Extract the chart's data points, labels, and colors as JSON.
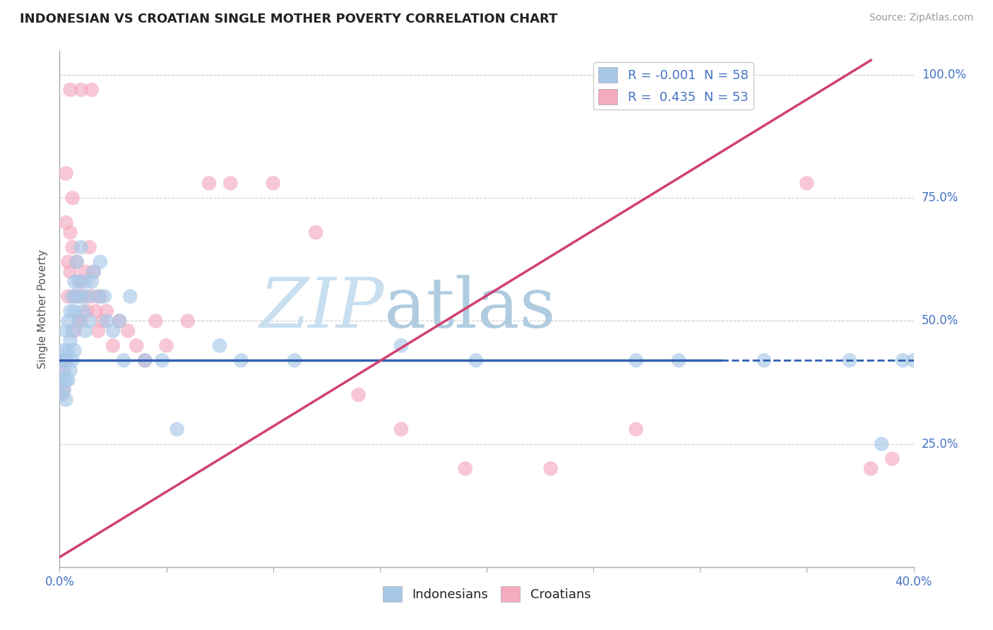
{
  "title": "INDONESIAN VS CROATIAN SINGLE MOTHER POVERTY CORRELATION CHART",
  "source": "Source: ZipAtlas.com",
  "ylabel": "Single Mother Poverty",
  "y_ticks": [
    0.0,
    0.25,
    0.5,
    0.75,
    1.0
  ],
  "y_tick_labels": [
    "",
    "25.0%",
    "50.0%",
    "75.0%",
    "100.0%"
  ],
  "xlim": [
    0.0,
    0.4
  ],
  "ylim": [
    0.0,
    1.05
  ],
  "legend_r_blue": "-0.001",
  "legend_n_blue": "58",
  "legend_r_pink": "0.435",
  "legend_n_pink": "53",
  "blue_color": "#a8c8e8",
  "pink_color": "#f4aabf",
  "blue_line_color": "#3060b0",
  "pink_line_color": "#d04070",
  "watermark_zip": "ZIP",
  "watermark_atlas": "atlas",
  "watermark_color_zip": "#c8dff0",
  "watermark_color_atlas": "#b0cce0",
  "grid_color": "#cccccc",
  "title_color": "#222222",
  "axis_label_color": "#4472c4",
  "blue_line_solid_end": 0.31,
  "blue_line_y": 0.42,
  "pink_line_x0": 0.0,
  "pink_line_y0": 0.02,
  "pink_line_x1": 0.38,
  "pink_line_y1": 1.03,
  "indonesian_x": [
    0.001,
    0.001,
    0.001,
    0.002,
    0.002,
    0.002,
    0.003,
    0.003,
    0.003,
    0.003,
    0.004,
    0.004,
    0.004,
    0.005,
    0.005,
    0.005,
    0.006,
    0.006,
    0.006,
    0.007,
    0.007,
    0.007,
    0.008,
    0.008,
    0.009,
    0.009,
    0.01,
    0.01,
    0.011,
    0.012,
    0.012,
    0.013,
    0.014,
    0.015,
    0.016,
    0.018,
    0.019,
    0.021,
    0.022,
    0.025,
    0.028,
    0.03,
    0.033,
    0.04,
    0.048,
    0.055,
    0.075,
    0.085,
    0.11,
    0.16,
    0.195,
    0.27,
    0.29,
    0.33,
    0.37,
    0.385,
    0.395,
    0.4
  ],
  "indonesian_y": [
    0.42,
    0.38,
    0.35,
    0.44,
    0.4,
    0.36,
    0.48,
    0.42,
    0.38,
    0.34,
    0.5,
    0.44,
    0.38,
    0.52,
    0.46,
    0.4,
    0.55,
    0.48,
    0.42,
    0.58,
    0.52,
    0.44,
    0.62,
    0.55,
    0.58,
    0.5,
    0.65,
    0.55,
    0.52,
    0.58,
    0.48,
    0.55,
    0.5,
    0.58,
    0.6,
    0.55,
    0.62,
    0.55,
    0.5,
    0.48,
    0.5,
    0.42,
    0.55,
    0.42,
    0.42,
    0.28,
    0.45,
    0.42,
    0.42,
    0.45,
    0.42,
    0.42,
    0.42,
    0.42,
    0.42,
    0.25,
    0.42,
    0.42
  ],
  "croatian_x": [
    0.001,
    0.001,
    0.002,
    0.002,
    0.003,
    0.003,
    0.004,
    0.004,
    0.005,
    0.005,
    0.006,
    0.006,
    0.007,
    0.007,
    0.008,
    0.008,
    0.009,
    0.01,
    0.01,
    0.011,
    0.012,
    0.013,
    0.014,
    0.015,
    0.016,
    0.017,
    0.018,
    0.019,
    0.02,
    0.022,
    0.025,
    0.028,
    0.032,
    0.036,
    0.04,
    0.045,
    0.05,
    0.06,
    0.07,
    0.08,
    0.1,
    0.12,
    0.14,
    0.16,
    0.19,
    0.23,
    0.27,
    0.35,
    0.38,
    0.39,
    0.005,
    0.01,
    0.015
  ],
  "croatian_y": [
    0.4,
    0.35,
    0.42,
    0.36,
    0.8,
    0.7,
    0.62,
    0.55,
    0.68,
    0.6,
    0.75,
    0.65,
    0.55,
    0.48,
    0.62,
    0.55,
    0.5,
    0.58,
    0.5,
    0.55,
    0.6,
    0.52,
    0.65,
    0.55,
    0.6,
    0.52,
    0.48,
    0.55,
    0.5,
    0.52,
    0.45,
    0.5,
    0.48,
    0.45,
    0.42,
    0.5,
    0.45,
    0.5,
    0.78,
    0.78,
    0.78,
    0.68,
    0.35,
    0.28,
    0.2,
    0.2,
    0.28,
    0.78,
    0.2,
    0.22,
    0.97,
    0.97,
    0.97
  ]
}
